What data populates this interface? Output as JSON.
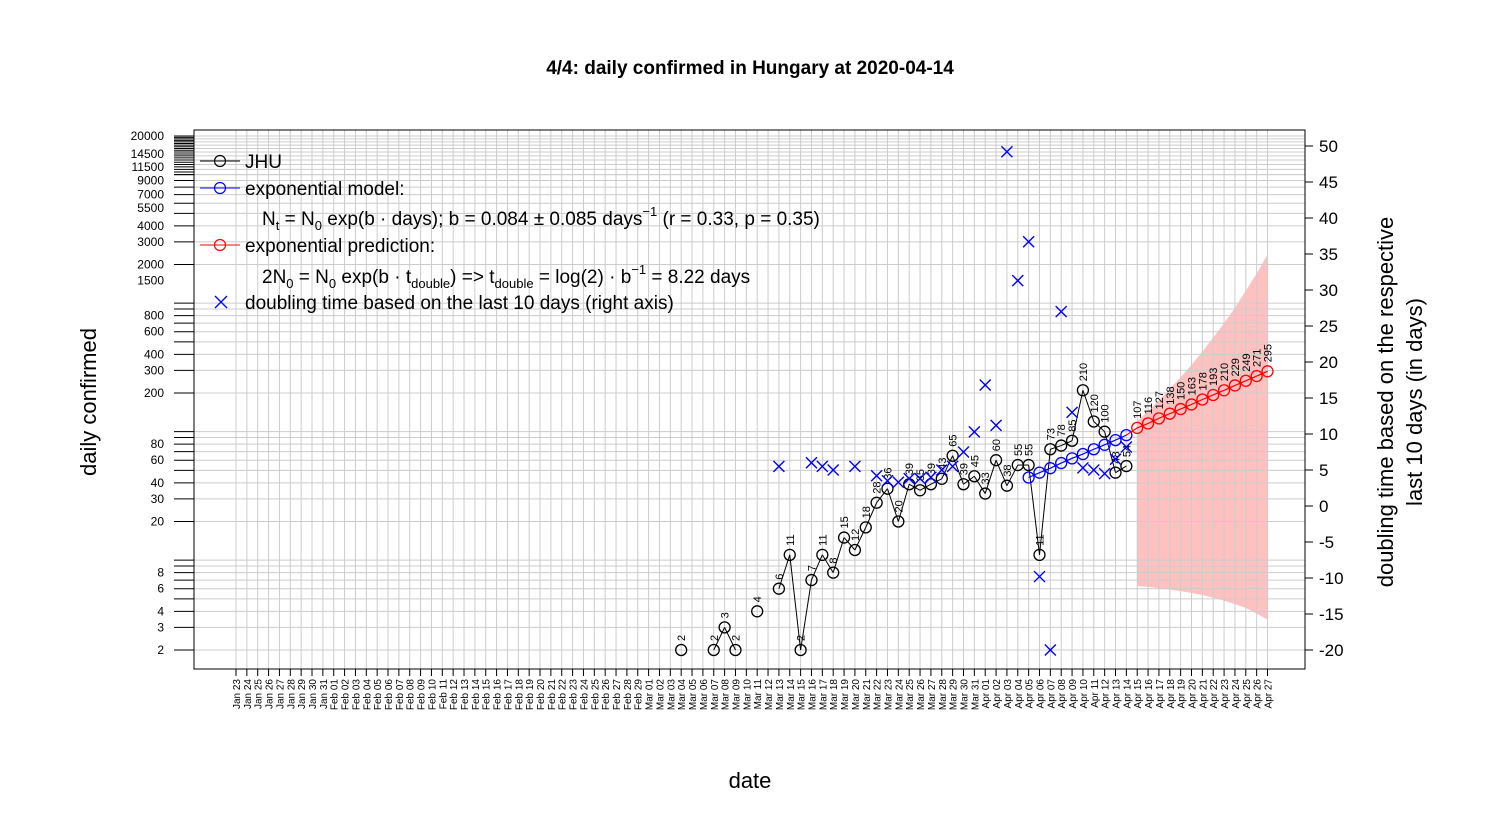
{
  "chart_data": {
    "type": "line",
    "title": "4/4: daily confirmed in Hungary at 2020-04-14",
    "xlabel": "date",
    "ylabel": "daily confirmed",
    "y2label_line1": "doubling time based on the respective",
    "y2label_line2": "last 10 days (in days)",
    "y_scale": "log",
    "ylim": [
      1.5,
      20000
    ],
    "y_ticks": [
      "2",
      "3",
      "4",
      "6",
      "8",
      "20",
      "30",
      "40",
      "60",
      "80",
      "200",
      "300",
      "400",
      "600",
      "800",
      "1500",
      "2000",
      "3000",
      "4000",
      "5500",
      "7000",
      "9000",
      "11500",
      "14500",
      "20000"
    ],
    "y2lim": [
      -22,
      51
    ],
    "y2_ticks": [
      -20,
      -15,
      -10,
      -5,
      0,
      5,
      10,
      15,
      20,
      25,
      30,
      35,
      40,
      45,
      50
    ],
    "x_ticks": [
      "Jan 23",
      "Jan 24",
      "Jan 25",
      "Jan 26",
      "Jan 27",
      "Jan 28",
      "Jan 29",
      "Jan 30",
      "Jan 31",
      "Feb 01",
      "Feb 02",
      "Feb 03",
      "Feb 04",
      "Feb 05",
      "Feb 06",
      "Feb 07",
      "Feb 08",
      "Feb 09",
      "Feb 10",
      "Feb 11",
      "Feb 12",
      "Feb 13",
      "Feb 14",
      "Feb 15",
      "Feb 16",
      "Feb 17",
      "Feb 18",
      "Feb 19",
      "Feb 20",
      "Feb 21",
      "Feb 22",
      "Feb 23",
      "Feb 24",
      "Feb 25",
      "Feb 26",
      "Feb 27",
      "Feb 28",
      "Feb 29",
      "Mar 01",
      "Mar 02",
      "Mar 03",
      "Mar 04",
      "Mar 05",
      "Mar 06",
      "Mar 07",
      "Mar 08",
      "Mar 09",
      "Mar 10",
      "Mar 11",
      "Mar 12",
      "Mar 13",
      "Mar 14",
      "Mar 15",
      "Mar 16",
      "Mar 17",
      "Mar 18",
      "Mar 19",
      "Mar 20",
      "Mar 21",
      "Mar 22",
      "Mar 23",
      "Mar 24",
      "Mar 25",
      "Mar 26",
      "Mar 27",
      "Mar 28",
      "Mar 29",
      "Mar 30",
      "Mar 31",
      "Apr 01",
      "Apr 02",
      "Apr 03",
      "Apr 04",
      "Apr 05",
      "Apr 06",
      "Apr 07",
      "Apr 08",
      "Apr 09",
      "Apr 10",
      "Apr 11",
      "Apr 12",
      "Apr 13",
      "Apr 14",
      "Apr 15",
      "Apr 16",
      "Apr 17",
      "Apr 18",
      "Apr 19",
      "Apr 20",
      "Apr 21",
      "Apr 22",
      "Apr 23",
      "Apr 24",
      "Apr 25",
      "Apr 26",
      "Apr 27"
    ],
    "legend": {
      "placement": "top-left",
      "jhu": "JHU",
      "model": "exponential model:",
      "model_eq_1": "N",
      "model_eq_sub1": "t",
      "model_eq_2": " = N",
      "model_eq_sub2": "0",
      "model_eq_3": " exp(b · days); b = 0.084 ± 0.085 days",
      "model_eq_sup": "−1",
      "model_eq_4": " (r = 0.33, p = 0.35)",
      "prediction": "exponential prediction:",
      "pred_eq_1": "2N",
      "pred_eq_sub1": "0",
      "pred_eq_2": " = N",
      "pred_eq_sub2": "0",
      "pred_eq_3": " exp(b · t",
      "pred_eq_sub3": "double",
      "pred_eq_4": ") => t",
      "pred_eq_sub4": "double",
      "pred_eq_5": " = log(2) · b",
      "pred_eq_sup5": "−1",
      "pred_eq_6": " = 8.22 days",
      "doubling": "doubling time based on the last  10  days (right axis)"
    },
    "colors": {
      "jhu": "#000000",
      "model": "#0000ff",
      "prediction": "#ff0000",
      "band": "#ffc0c0",
      "doubling": "#0000ff",
      "grid": "#cccccc"
    },
    "series": [
      {
        "name": "JHU",
        "points": [
          {
            "x": "Mar 04",
            "y": 2,
            "label": "2"
          },
          {
            "x": "Mar 07",
            "y": 2,
            "label": "2"
          },
          {
            "x": "Mar 08",
            "y": 3,
            "label": "3"
          },
          {
            "x": "Mar 09",
            "y": 2,
            "label": "2"
          },
          {
            "x": "Mar 11",
            "y": 4,
            "label": "4"
          },
          {
            "x": "Mar 13",
            "y": 6,
            "label": "6"
          },
          {
            "x": "Mar 14",
            "y": 11,
            "label": "11"
          },
          {
            "x": "Mar 15",
            "y": 2,
            "label": "2"
          },
          {
            "x": "Mar 16",
            "y": 7,
            "label": "7"
          },
          {
            "x": "Mar 17",
            "y": 11,
            "label": "11"
          },
          {
            "x": "Mar 18",
            "y": 8,
            "label": "8"
          },
          {
            "x": "Mar 19",
            "y": 15,
            "label": "15"
          },
          {
            "x": "Mar 20",
            "y": 12,
            "label": "12"
          },
          {
            "x": "Mar 21",
            "y": 18,
            "label": "18"
          },
          {
            "x": "Mar 22",
            "y": 28,
            "label": "28"
          },
          {
            "x": "Mar 23",
            "y": 36,
            "label": "36"
          },
          {
            "x": "Mar 24",
            "y": 20,
            "label": "20"
          },
          {
            "x": "Mar 25",
            "y": 39,
            "label": "39"
          },
          {
            "x": "Mar 26",
            "y": 35,
            "label": "35"
          },
          {
            "x": "Mar 27",
            "y": 39,
            "label": "39"
          },
          {
            "x": "Mar 28",
            "y": 43,
            "label": "43"
          },
          {
            "x": "Mar 29",
            "y": 65,
            "label": "65"
          },
          {
            "x": "Mar 30",
            "y": 39,
            "label": "39"
          },
          {
            "x": "Mar 31",
            "y": 45,
            "label": "45"
          },
          {
            "x": "Apr 01",
            "y": 33,
            "label": "33"
          },
          {
            "x": "Apr 02",
            "y": 60,
            "label": "60"
          },
          {
            "x": "Apr 03",
            "y": 38,
            "label": "38"
          },
          {
            "x": "Apr 04",
            "y": 55,
            "label": "55"
          },
          {
            "x": "Apr 05",
            "y": 55,
            "label": "55"
          },
          {
            "x": "Apr 06",
            "y": 11,
            "label": "11"
          },
          {
            "x": "Apr 07",
            "y": 73,
            "label": "73"
          },
          {
            "x": "Apr 08",
            "y": 78,
            "label": "78"
          },
          {
            "x": "Apr 09",
            "y": 85,
            "label": "85"
          },
          {
            "x": "Apr 10",
            "y": 210,
            "label": "210"
          },
          {
            "x": "Apr 11",
            "y": 120,
            "label": "120"
          },
          {
            "x": "Apr 12",
            "y": 100,
            "label": "100"
          },
          {
            "x": "Apr 13",
            "y": 48,
            "label": "48"
          },
          {
            "x": "Apr 14",
            "y": 54,
            "label": "54"
          }
        ]
      },
      {
        "name": "exponential model",
        "points": [
          {
            "x": "Apr 05",
            "y": 44
          },
          {
            "x": "Apr 06",
            "y": 48
          },
          {
            "x": "Apr 07",
            "y": 52
          },
          {
            "x": "Apr 08",
            "y": 57
          },
          {
            "x": "Apr 09",
            "y": 62
          },
          {
            "x": "Apr 10",
            "y": 67
          },
          {
            "x": "Apr 11",
            "y": 73
          },
          {
            "x": "Apr 12",
            "y": 79
          },
          {
            "x": "Apr 13",
            "y": 86
          },
          {
            "x": "Apr 14",
            "y": 94
          }
        ]
      },
      {
        "name": "exponential prediction",
        "points": [
          {
            "x": "Apr 15",
            "y": 107,
            "label": "107"
          },
          {
            "x": "Apr 16",
            "y": 116,
            "label": "116"
          },
          {
            "x": "Apr 17",
            "y": 127,
            "label": "127"
          },
          {
            "x": "Apr 18",
            "y": 138,
            "label": "138"
          },
          {
            "x": "Apr 19",
            "y": 150,
            "label": "150"
          },
          {
            "x": "Apr 20",
            "y": 163,
            "label": "163"
          },
          {
            "x": "Apr 21",
            "y": 178,
            "label": "178"
          },
          {
            "x": "Apr 22",
            "y": 193,
            "label": "193"
          },
          {
            "x": "Apr 23",
            "y": 210,
            "label": "210"
          },
          {
            "x": "Apr 24",
            "y": 229,
            "label": "229"
          },
          {
            "x": "Apr 25",
            "y": 249,
            "label": "249"
          },
          {
            "x": "Apr 26",
            "y": 271,
            "label": "271"
          },
          {
            "x": "Apr 27",
            "y": 295,
            "label": "295"
          }
        ],
        "band_lower": [
          6.3,
          6.2,
          6.05,
          5.9,
          5.75,
          5.55,
          5.35,
          5.1,
          4.85,
          4.55,
          4.25,
          3.85,
          3.45
        ],
        "band_upper": [
          120,
          145,
          175,
          215,
          265,
          330,
          420,
          540,
          700,
          920,
          1250,
          1700,
          2400
        ]
      },
      {
        "name": "doubling time based on the last  10  days (right axis)",
        "axis": "right",
        "points": [
          {
            "x": "Mar 13",
            "y": 5.5
          },
          {
            "x": "Mar 16",
            "y": 6.0
          },
          {
            "x": "Mar 17",
            "y": 5.5
          },
          {
            "x": "Mar 18",
            "y": 5.0
          },
          {
            "x": "Mar 20",
            "y": 5.5
          },
          {
            "x": "Mar 22",
            "y": 4.2
          },
          {
            "x": "Mar 23",
            "y": 3.5
          },
          {
            "x": "Mar 24",
            "y": 3.3
          },
          {
            "x": "Mar 25",
            "y": 3.8
          },
          {
            "x": "Mar 26",
            "y": 3.8
          },
          {
            "x": "Mar 27",
            "y": 4.0
          },
          {
            "x": "Mar 28",
            "y": 5.0
          },
          {
            "x": "Mar 29",
            "y": 5.5
          },
          {
            "x": "Mar 30",
            "y": 7.5
          },
          {
            "x": "Mar 31",
            "y": 10.3
          },
          {
            "x": "Apr 01",
            "y": 16.8
          },
          {
            "x": "Apr 02",
            "y": 11.2
          },
          {
            "x": "Apr 03",
            "y": 49.2
          },
          {
            "x": "Apr 04",
            "y": 31.3
          },
          {
            "x": "Apr 05",
            "y": 36.7
          },
          {
            "x": "Apr 06",
            "y": -9.8
          },
          {
            "x": "Apr 07",
            "y": -20.0
          },
          {
            "x": "Apr 08",
            "y": 27.0
          },
          {
            "x": "Apr 09",
            "y": 13.0
          },
          {
            "x": "Apr 10",
            "y": 5.3
          },
          {
            "x": "Apr 11",
            "y": 5.0
          },
          {
            "x": "Apr 12",
            "y": 4.5
          },
          {
            "x": "Apr 13",
            "y": 6.5
          },
          {
            "x": "Apr 14",
            "y": 8.2
          }
        ]
      }
    ]
  }
}
